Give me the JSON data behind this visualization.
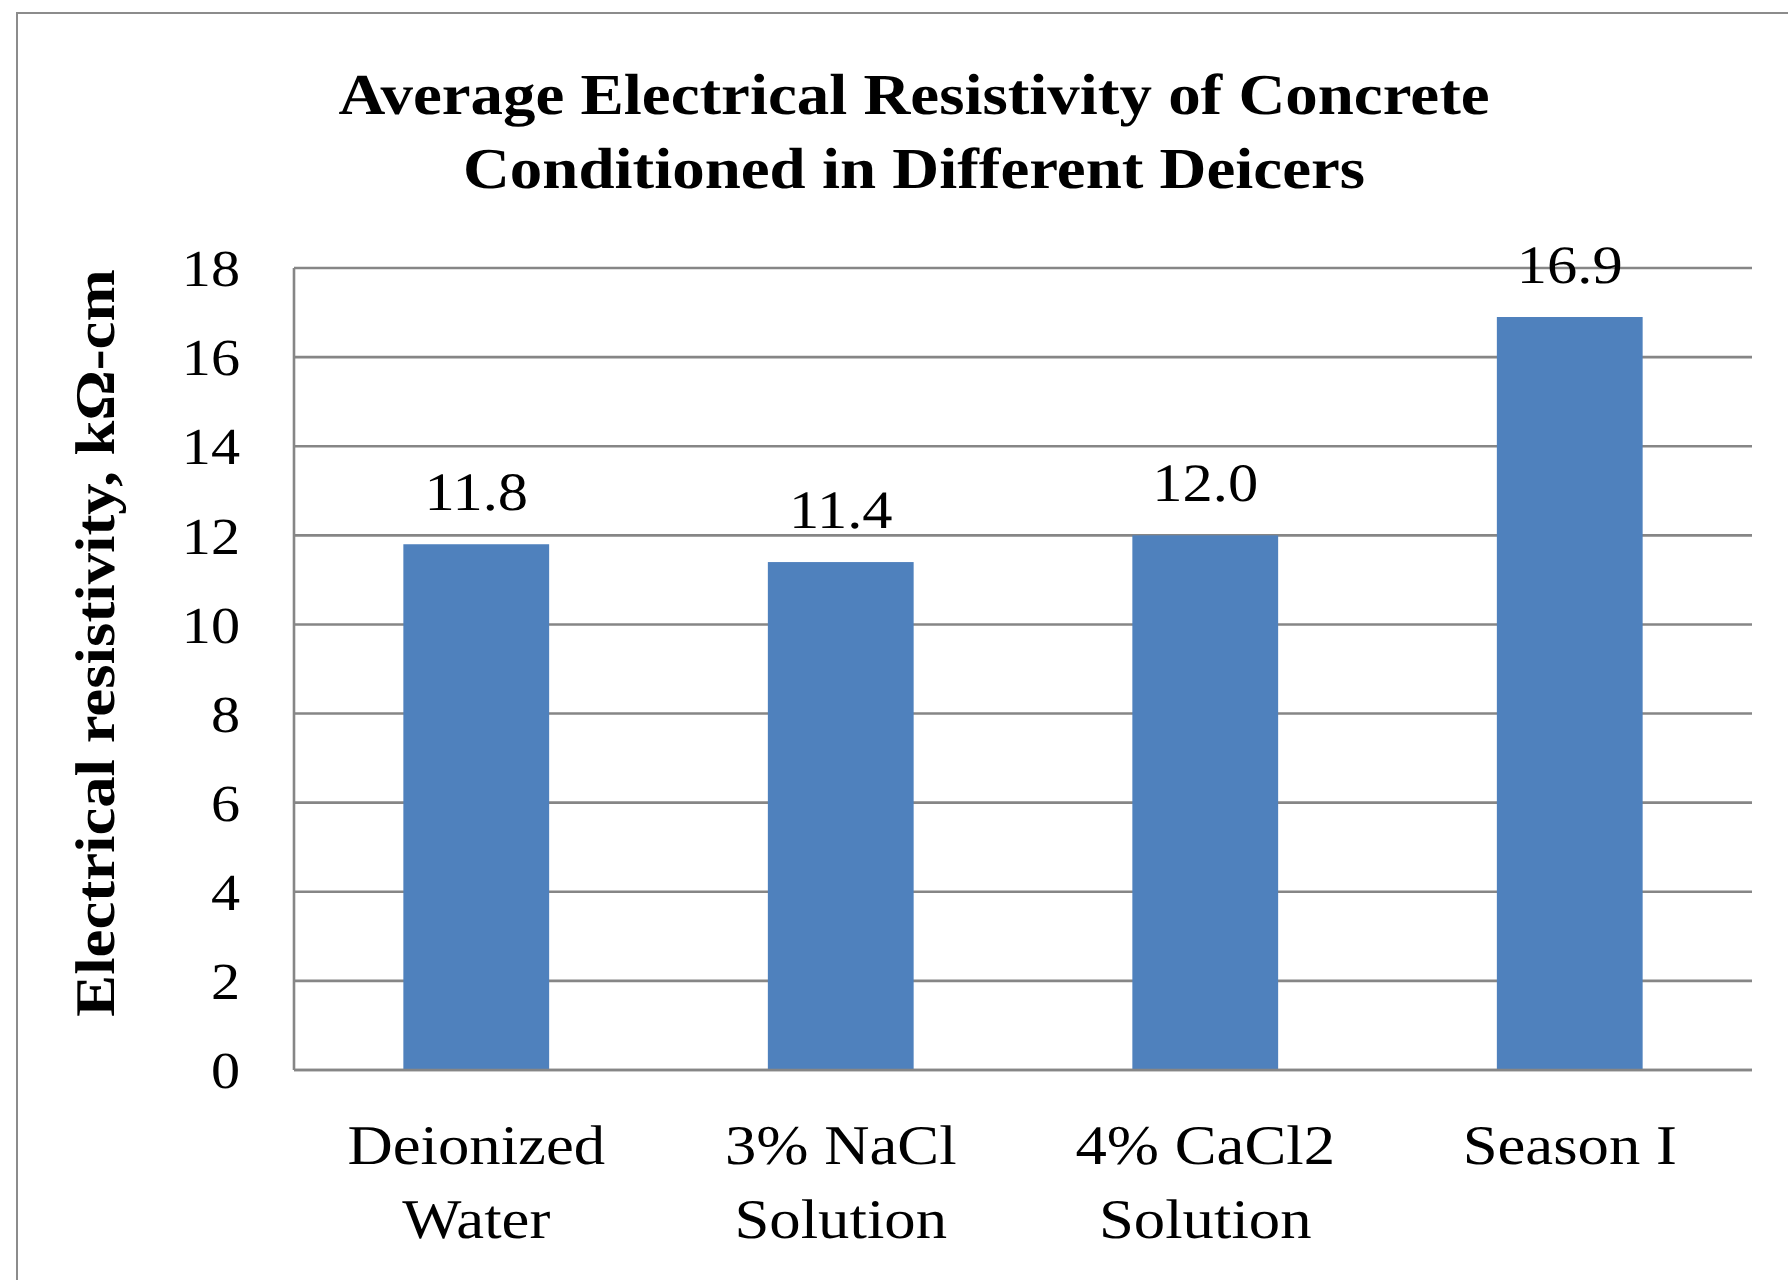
{
  "chart_data": {
    "type": "bar",
    "title": "Average Electrical Resistivity of Concrete\nConditioned in Different Deicers",
    "ylabel": "Electrical resistivity, kΩ-cm",
    "categories": [
      "Deionized\nWater",
      "3% NaCl\nSolution",
      "4% CaCl2\nSolution",
      "Season I"
    ],
    "values": [
      11.8,
      11.4,
      12.0,
      16.9
    ],
    "value_labels": [
      "11.8",
      "11.4",
      "12.0",
      "16.9"
    ],
    "color": "#4f81bd",
    "ylim": [
      0,
      18
    ],
    "yticks": [
      0,
      2,
      4,
      6,
      8,
      10,
      12,
      14,
      16,
      18
    ],
    "grid": "y"
  }
}
